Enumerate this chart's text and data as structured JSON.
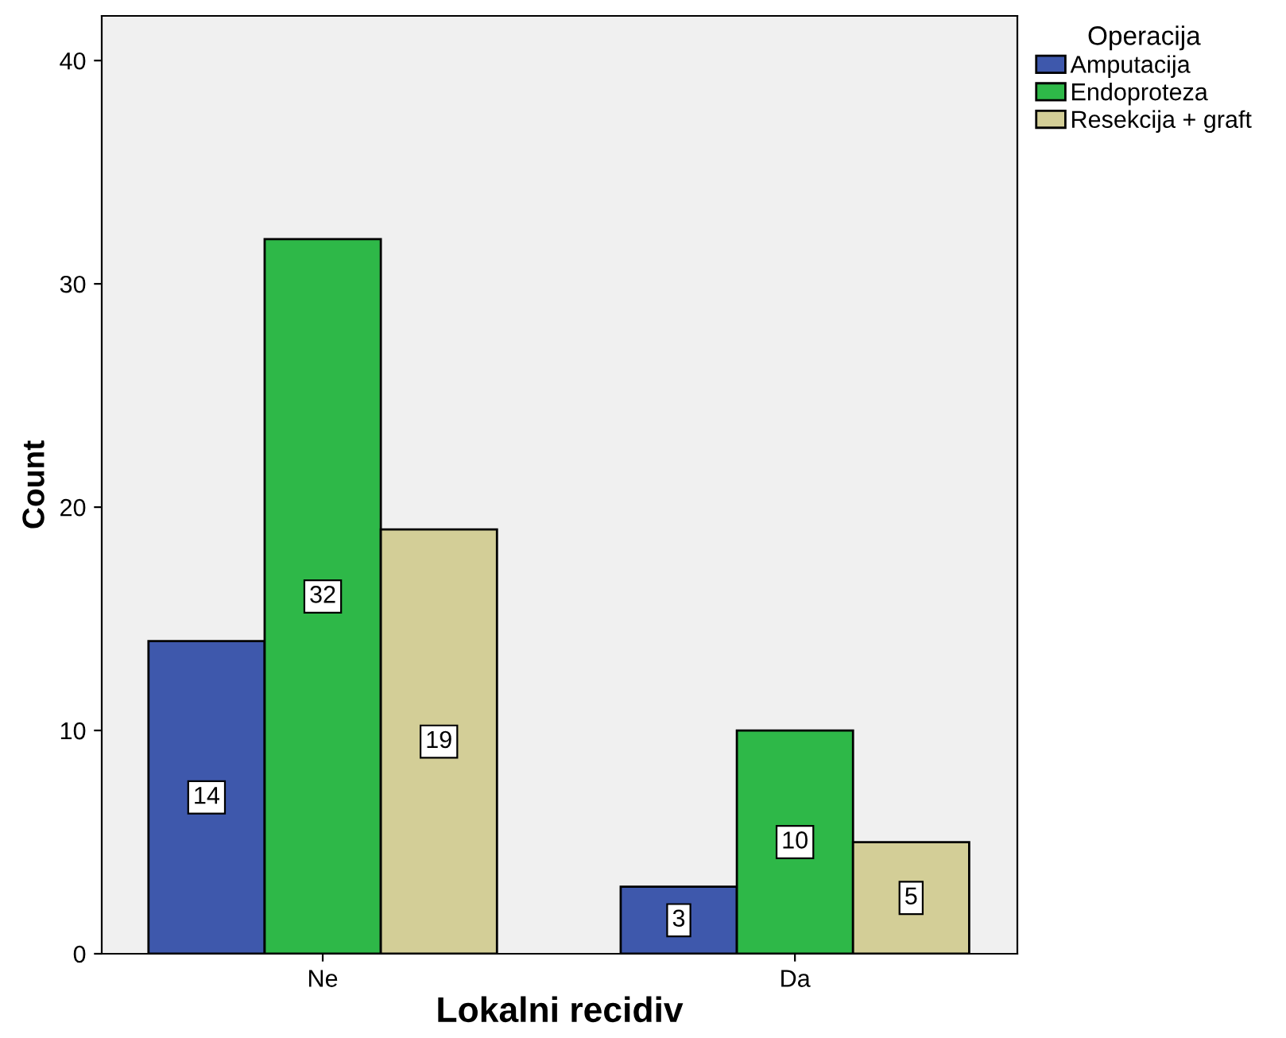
{
  "chart_data": {
    "type": "bar",
    "xlabel": "Lokalni recidiv",
    "ylabel": "Count",
    "legend_title": "Operacija",
    "categories": [
      "Ne",
      "Da"
    ],
    "series": [
      {
        "name": "Amputacija",
        "color": "#3e58ac",
        "values": [
          14,
          3
        ]
      },
      {
        "name": "Endoproteza",
        "color": "#2eb848",
        "values": [
          32,
          10
        ]
      },
      {
        "name": "Resekcija + graft",
        "color": "#d3ce97",
        "values": [
          19,
          5
        ]
      }
    ],
    "ylim": [
      0,
      42
    ],
    "yticks": [
      0,
      10,
      20,
      30,
      40
    ],
    "grid": false,
    "legend": "top right",
    "data_labels": true
  }
}
